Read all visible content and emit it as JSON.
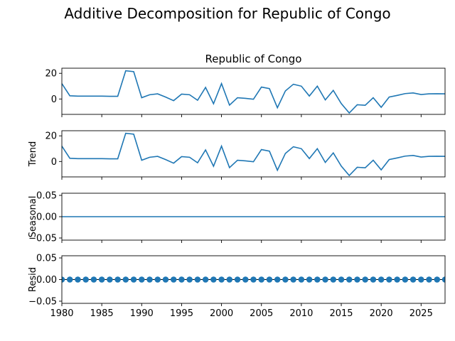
{
  "figure": {
    "title": "Additive Decomposition for Republic of Congo",
    "line_color": "#1f77b4"
  },
  "chart_data": [
    {
      "type": "line",
      "panel": "observed",
      "title": "Republic of Congo",
      "ylabel": "",
      "xlim": [
        1980,
        2028
      ],
      "ylim": [
        -12,
        24
      ],
      "yticks": [
        "0",
        "20"
      ],
      "ytick_values": [
        0,
        20
      ],
      "x": [
        1980,
        1981,
        1982,
        1983,
        1984,
        1985,
        1986,
        1987,
        1988,
        1989,
        1990,
        1991,
        1992,
        1993,
        1994,
        1995,
        1996,
        1997,
        1998,
        1999,
        2000,
        2001,
        2002,
        2003,
        2004,
        2005,
        2006,
        2007,
        2008,
        2009,
        2010,
        2011,
        2012,
        2013,
        2014,
        2015,
        2016,
        2017,
        2018,
        2019,
        2020,
        2021,
        2022,
        2023,
        2024,
        2025,
        2026,
        2027,
        2028
      ],
      "values": [
        12,
        2.5,
        2.2,
        2.2,
        2.2,
        2.2,
        2.1,
        2.1,
        22,
        21.3,
        1,
        3.3,
        4,
        1.5,
        -1.3,
        3.8,
        3.3,
        -1,
        9,
        -3.7,
        12,
        -4.8,
        1,
        0.5,
        -0.2,
        9.3,
        8.1,
        -6.8,
        6.3,
        11.5,
        10,
        2.3,
        10,
        -0.7,
        6.7,
        -3.6,
        -10.9,
        -4.5,
        -4.9,
        1,
        -6.5,
        1.5,
        2.8,
        4.2,
        4.7,
        3.5,
        4,
        4.1,
        4
      ]
    },
    {
      "type": "line",
      "panel": "trend",
      "title": "",
      "ylabel": "Trend",
      "xlim": [
        1980,
        2028
      ],
      "ylim": [
        -12,
        24
      ],
      "yticks": [
        "0",
        "20"
      ],
      "ytick_values": [
        0,
        20
      ],
      "x": [
        1980,
        1981,
        1982,
        1983,
        1984,
        1985,
        1986,
        1987,
        1988,
        1989,
        1990,
        1991,
        1992,
        1993,
        1994,
        1995,
        1996,
        1997,
        1998,
        1999,
        2000,
        2001,
        2002,
        2003,
        2004,
        2005,
        2006,
        2007,
        2008,
        2009,
        2010,
        2011,
        2012,
        2013,
        2014,
        2015,
        2016,
        2017,
        2018,
        2019,
        2020,
        2021,
        2022,
        2023,
        2024,
        2025,
        2026,
        2027,
        2028
      ],
      "values": [
        12,
        2.5,
        2.2,
        2.2,
        2.2,
        2.2,
        2.1,
        2.1,
        22,
        21.3,
        1,
        3.3,
        4,
        1.5,
        -1.3,
        3.8,
        3.3,
        -1,
        9,
        -3.7,
        12,
        -4.8,
        1,
        0.5,
        -0.2,
        9.3,
        8.1,
        -6.8,
        6.3,
        11.5,
        10,
        2.3,
        10,
        -0.7,
        6.7,
        -3.6,
        -10.9,
        -4.5,
        -4.9,
        1,
        -6.5,
        1.5,
        2.8,
        4.2,
        4.7,
        3.5,
        4,
        4.1,
        4
      ]
    },
    {
      "type": "line",
      "panel": "seasonal",
      "title": "",
      "ylabel": "Seasonal",
      "xlim": [
        1980,
        2028
      ],
      "ylim": [
        -0.055,
        0.055
      ],
      "yticks": [
        "0.05",
        "0.00",
        "−0.05"
      ],
      "ytick_values": [
        0.05,
        0,
        -0.05
      ],
      "x": [
        1980,
        2028
      ],
      "values": [
        0,
        0
      ]
    },
    {
      "type": "scatter",
      "panel": "resid",
      "title": "",
      "ylabel": "Resid",
      "xlim": [
        1980,
        2028
      ],
      "ylim": [
        -0.055,
        0.055
      ],
      "yticks": [
        "0.05",
        "0.00",
        "−0.05"
      ],
      "ytick_values": [
        0.05,
        0,
        -0.05
      ],
      "x": [
        1980,
        1981,
        1982,
        1983,
        1984,
        1985,
        1986,
        1987,
        1988,
        1989,
        1990,
        1991,
        1992,
        1993,
        1994,
        1995,
        1996,
        1997,
        1998,
        1999,
        2000,
        2001,
        2002,
        2003,
        2004,
        2005,
        2006,
        2007,
        2008,
        2009,
        2010,
        2011,
        2012,
        2013,
        2014,
        2015,
        2016,
        2017,
        2018,
        2019,
        2020,
        2021,
        2022,
        2023,
        2024,
        2025,
        2026,
        2027,
        2028
      ],
      "values": [
        0,
        0,
        0,
        0,
        0,
        0,
        0,
        0,
        0,
        0,
        0,
        0,
        0,
        0,
        0,
        0,
        0,
        0,
        0,
        0,
        0,
        0,
        0,
        0,
        0,
        0,
        0,
        0,
        0,
        0,
        0,
        0,
        0,
        0,
        0,
        0,
        0,
        0,
        0,
        0,
        0,
        0,
        0,
        0,
        0,
        0,
        0,
        0,
        0
      ],
      "xticks": [
        "1980",
        "1985",
        "1990",
        "1995",
        "2000",
        "2005",
        "2010",
        "2015",
        "2020",
        "2025"
      ],
      "xtick_values": [
        1980,
        1985,
        1990,
        1995,
        2000,
        2005,
        2010,
        2015,
        2020,
        2025
      ]
    }
  ]
}
